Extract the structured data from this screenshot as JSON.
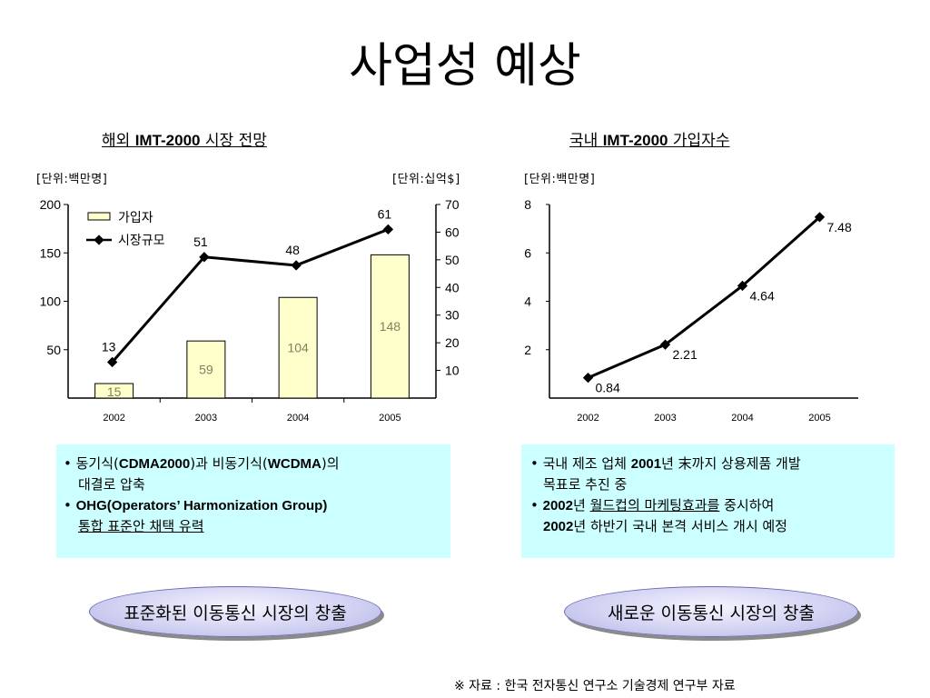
{
  "slide": {
    "title": "사업성 예상",
    "source": "※ 자료 : 한국 전자통신 연구소 기술경제 연구부 자료"
  },
  "left_chart": {
    "title_pre": "해외 ",
    "title_bold": "IMT-2000",
    "title_post": " 시장 전망",
    "unit_left": "[단위:백만명]",
    "unit_right": "[단위:십억$]"
  },
  "right_chart": {
    "title_pre": "국내 ",
    "title_bold": "IMT-2000",
    "title_post": " 가입자수",
    "unit": "[단위:백만명]"
  },
  "chart_data": [
    {
      "type": "bar",
      "categories": [
        "2002",
        "2003",
        "2004",
        "2005"
      ],
      "series": [
        {
          "name": "가입자",
          "type": "bar",
          "axis": "left",
          "values": [
            15,
            59,
            104,
            148
          ],
          "color": "#ffffcc"
        },
        {
          "name": "시장규모",
          "type": "line",
          "axis": "right",
          "values": [
            13,
            51,
            48,
            61
          ],
          "color": "#000000"
        }
      ],
      "y_left": {
        "ticks": [
          50,
          100,
          150,
          200
        ],
        "range": [
          0,
          200
        ]
      },
      "y_right": {
        "ticks": [
          10,
          20,
          30,
          40,
          50,
          60,
          70
        ],
        "range": [
          0,
          70
        ]
      },
      "legend": {
        "position": "top-left",
        "entries": [
          "가입자",
          "시장규모"
        ]
      },
      "grid": false
    },
    {
      "type": "line",
      "categories": [
        "2002",
        "2003",
        "2004",
        "2005"
      ],
      "series": [
        {
          "values": [
            0.84,
            2.21,
            4.64,
            7.48
          ],
          "labels": [
            "0.84",
            "2.21",
            "4.64",
            "7.48"
          ],
          "color": "#000000"
        }
      ],
      "y": {
        "ticks": [
          2,
          4,
          6,
          8
        ],
        "range": [
          0,
          8
        ]
      },
      "grid": false
    }
  ],
  "left_box": {
    "l1_a": "• 동기식(",
    "l1_b": "CDMA2000",
    "l1_c": ")과 비동기식(",
    "l1_d": "WCDMA",
    "l1_e": ")의",
    "l2": "대결로  압축",
    "l3_a": "• ",
    "l3_b": "OHG(Operators’ Harmonization Group)",
    "l4": "통합 표준안 채택 유력"
  },
  "right_box": {
    "l1_a": "• 국내 제조 업체 ",
    "l1_b": "2001",
    "l1_c": "년 末까지 상용제품 개발",
    "l2": "목표로 추진 중",
    "l3_a": "• ",
    "l3_b": "2002",
    "l3_c": "년 ",
    "l3_d": "월드컵의 마케팅효과를",
    "l3_e": " 중시하여",
    "l4_a": "2002",
    "l4_b": "년 하반기 국내 본격 서비스 개시 예정"
  },
  "left_pill": "표준화된 이동통신 시장의 창출",
  "right_pill": "새로운 이동통신 시장의 창출"
}
